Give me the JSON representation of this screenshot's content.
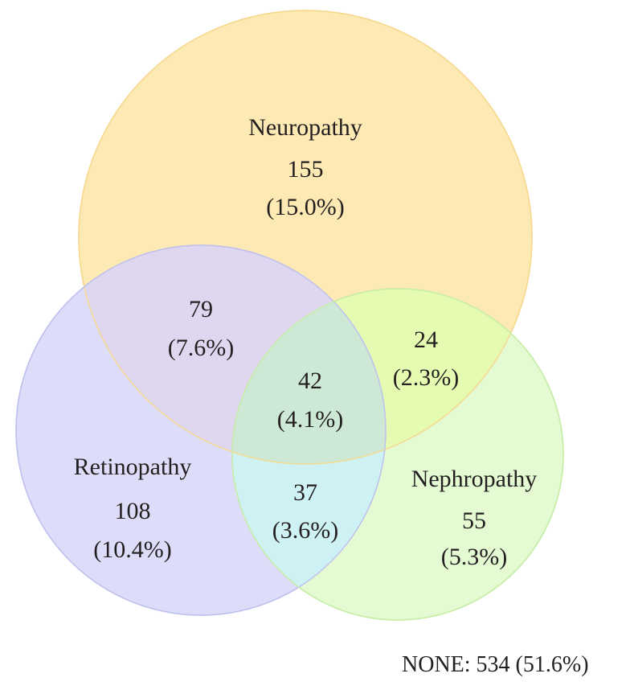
{
  "sets": {
    "neuropathy": {
      "label": "Neuropathy",
      "count": "155",
      "percent": "(15.0%)",
      "color": "#fde9b3",
      "stroke": "#f8d98c"
    },
    "retinopathy": {
      "label": "Retinopathy",
      "count": "108",
      "percent": "(10.4%)",
      "color": "#ddddf9",
      "stroke": "#c3c3f0"
    },
    "nephropathy": {
      "label": "Nephropathy",
      "count": "55",
      "percent": "(5.3%)",
      "color": "#e3fad3",
      "stroke": "#c9f0ad"
    }
  },
  "overlaps": {
    "neuro_retino": {
      "count": "79",
      "percent": "(7.6%)",
      "color": "#dfd6ef"
    },
    "neuro_nephro": {
      "count": "24",
      "percent": "(2.3%)",
      "color": "#e6fbb2"
    },
    "retino_nephro": {
      "count": "37",
      "percent": "(3.6%)",
      "color": "#cef2f3"
    },
    "all_three": {
      "count": "42",
      "percent": "(4.1%)",
      "color": "#cde9d6"
    }
  },
  "none": {
    "text": "NONE: 534 (51.6%)"
  }
}
